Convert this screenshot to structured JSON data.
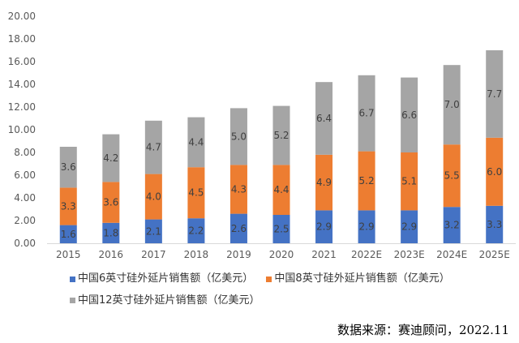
{
  "chart_data": {
    "type": "bar",
    "stacked": true,
    "categories": [
      "2015",
      "2016",
      "2017",
      "2018",
      "2019",
      "2020",
      "2021",
      "2022E",
      "2023E",
      "2024E",
      "2025E"
    ],
    "series": [
      {
        "name": "中国6英寸硅外延片销售额（亿美元）",
        "color": "#4472C4",
        "values": [
          1.6,
          1.8,
          2.1,
          2.2,
          2.6,
          2.5,
          2.9,
          2.9,
          2.9,
          3.2,
          3.3
        ],
        "labels": [
          "1.6",
          "1.8",
          "2.1",
          "2.2",
          "2.6",
          "2.5",
          "2.9",
          "2.9",
          "2.9",
          "3.2",
          "3.3"
        ]
      },
      {
        "name": "中国8英寸硅外延片销售额（亿美元）",
        "color": "#ED7D31",
        "values": [
          3.3,
          3.6,
          4.0,
          4.5,
          4.3,
          4.4,
          4.9,
          5.2,
          5.1,
          5.5,
          6.0
        ],
        "labels": [
          "3.3",
          "3.6",
          "4.0",
          "4.5",
          "4.3",
          "4.4",
          "4.9",
          "5.2",
          "5.1",
          "5.5",
          "6.0"
        ]
      },
      {
        "name": "中国12英寸硅外延片销售额（亿美元）",
        "color": "#A5A5A5",
        "values": [
          3.6,
          4.2,
          4.7,
          4.4,
          5.0,
          5.2,
          6.4,
          6.7,
          6.6,
          7.0,
          7.7
        ],
        "labels": [
          "3.6",
          "4.2",
          "4.7",
          "4.4",
          "5.0",
          "5.2",
          "6.4",
          "6.7",
          "6.6",
          "7.0",
          "7.7"
        ]
      }
    ],
    "ylim": [
      0,
      20
    ],
    "yticks": [
      "0.00",
      "2.00",
      "4.00",
      "6.00",
      "8.00",
      "10.00",
      "12.00",
      "14.00",
      "16.00",
      "18.00",
      "20.00"
    ],
    "grid": false,
    "legend": "bottom",
    "title": "",
    "xlabel": "",
    "ylabel": ""
  },
  "source": "数据来源：赛迪顾问，2022.11"
}
